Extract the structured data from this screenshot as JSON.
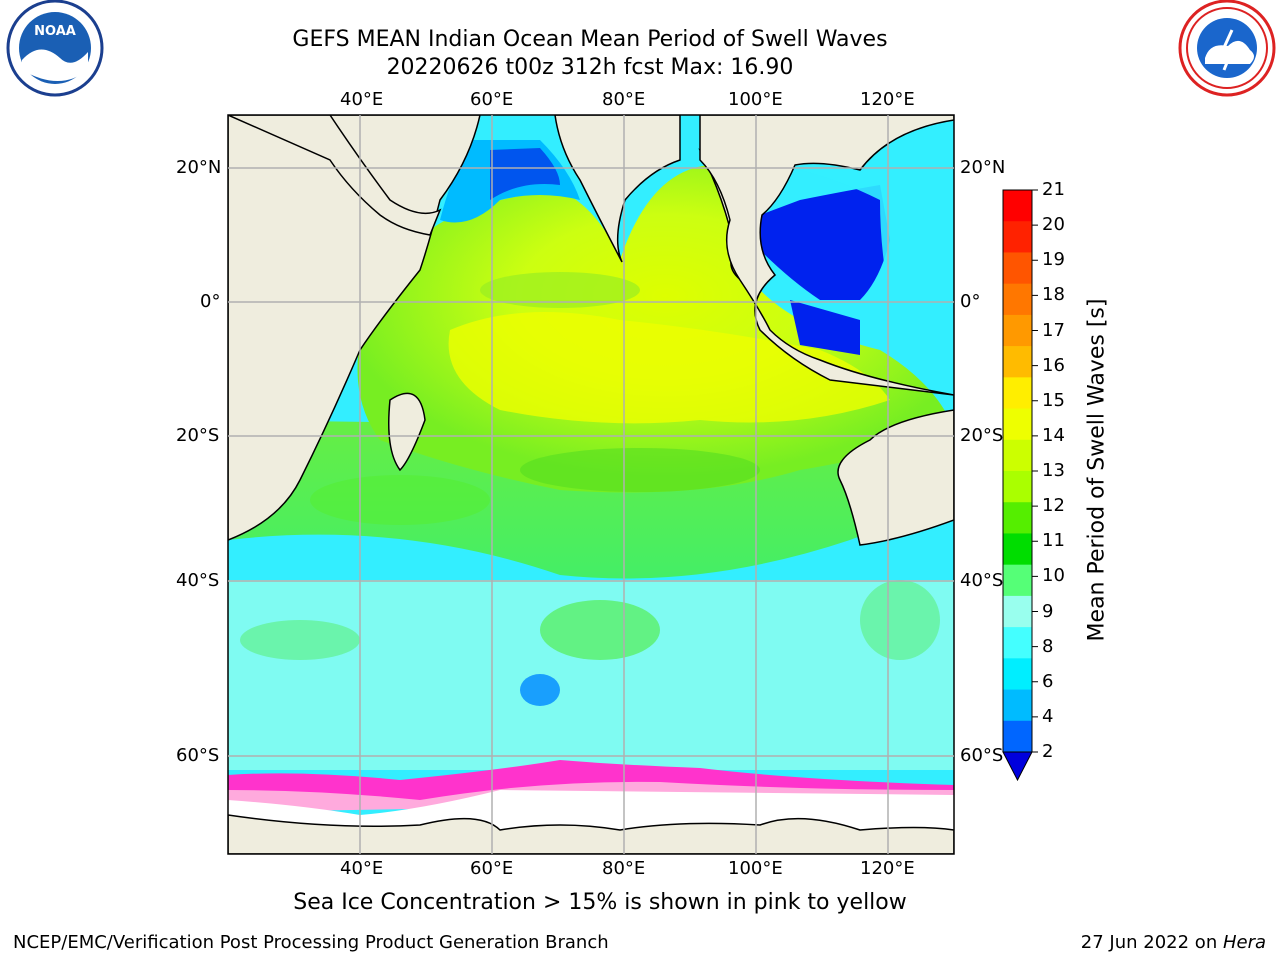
{
  "header": {
    "title_line1": "GEFS MEAN Indian Ocean Mean Period of Swell Waves",
    "title_line2": "20220626 t00z 312h fcst   Max: 16.90"
  },
  "logos": {
    "left": "noaa-logo",
    "right": "national-weather-service-logo"
  },
  "map": {
    "lon_labels_top": [
      "40°E",
      "60°E",
      "80°E",
      "100°E",
      "120°E"
    ],
    "lon_labels_bottom": [
      "40°E",
      "60°E",
      "80°E",
      "100°E",
      "120°E"
    ],
    "lat_labels_left": [
      "20°N",
      "0°",
      "20°S",
      "40°S",
      "60°S"
    ],
    "lat_labels_right": [
      "20°N",
      "0°",
      "20°S",
      "40°S",
      "60°S"
    ],
    "gridline_color": "#b0b0b0",
    "land_color": "#efedde",
    "sea_ice_colors": [
      "#ff33cc",
      "#ffaadd",
      "#ffdd66"
    ]
  },
  "colorbar": {
    "title": "Mean Period of Swell Waves [s]",
    "ticks": [
      "21",
      "20",
      "19",
      "18",
      "17",
      "16",
      "15",
      "14",
      "13",
      "12",
      "11",
      "10",
      "9",
      "8",
      "6",
      "4",
      "2"
    ],
    "colors_top_to_bottom": [
      "#ff0000",
      "#ff2200",
      "#ff5500",
      "#ff7700",
      "#ff9900",
      "#ffbb00",
      "#ffee00",
      "#eeff00",
      "#ccff00",
      "#aaff00",
      "#55ee00",
      "#00dd00",
      "#55ff77",
      "#99ffee",
      "#44ffff",
      "#00eeff",
      "#00bbff",
      "#0066ff"
    ],
    "under_color": "#0000dd"
  },
  "caption": "Sea Ice Concentration > 15% is shown in pink to yellow",
  "footer": {
    "left": "NCEP/EMC/Verification Post Processing Product Generation Branch",
    "right_prefix": "27 Jun 2022 on ",
    "right_host": "Hera"
  }
}
